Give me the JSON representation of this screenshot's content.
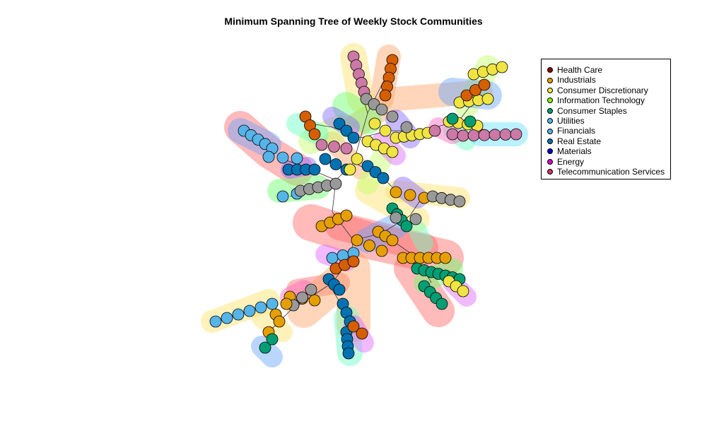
{
  "title": "Minimum Spanning Tree of Weekly Stock Communities",
  "legend": {
    "items": [
      {
        "label": "Health Care",
        "color": "#8B0000"
      },
      {
        "label": "Industrials",
        "color": "#E69F00"
      },
      {
        "label": "Consumer Discretionary",
        "color": "#F0E442"
      },
      {
        "label": "Information Technology",
        "color": "#7FFF00"
      },
      {
        "label": "Consumer Staples",
        "color": "#009E73"
      },
      {
        "label": "Utilities",
        "color": "#56B4E9"
      },
      {
        "label": "Financials",
        "color": "#56B4E9"
      },
      {
        "label": "Real Estate",
        "color": "#0072B2"
      },
      {
        "label": "Materials",
        "color": "#0000CD"
      },
      {
        "label": "Energy",
        "color": "#CC00CC"
      },
      {
        "label": "Telecommunication Services",
        "color": "#CC3366"
      }
    ]
  },
  "node_colors": {
    "sky": "#56B4E9",
    "blue": "#0072B2",
    "orange": "#E69F00",
    "dark_orange": "#D55E00",
    "yellow": "#F0E442",
    "green": "#009E73",
    "gray": "#999999",
    "pink": "#CC79A7"
  },
  "community_colors": [
    "#FF6666",
    "#FFA366",
    "#FFE066",
    "#C2FF66",
    "#66FF66",
    "#66FFC2",
    "#66E0FF",
    "#66A3FF",
    "#8566FF",
    "#E066FF",
    "#FF66C2"
  ]
}
